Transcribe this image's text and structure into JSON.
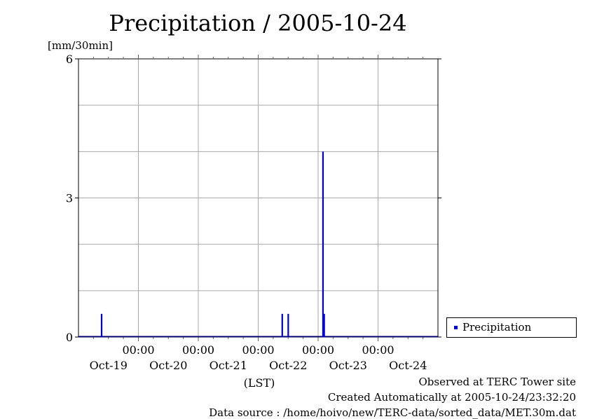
{
  "chart_data": {
    "type": "bar",
    "title": "Precipitation / 2005-10-24",
    "ylabel": "[mm/30min]",
    "xlabel": "(LST)",
    "ylim": [
      0,
      6
    ],
    "yticks": [
      0,
      3,
      6
    ],
    "ygrid_step": 1,
    "xlim_days": [
      "2005-10-19 00:00",
      "2005-10-25 00:00"
    ],
    "xtick_time_labels": [
      "00:00",
      "00:00",
      "00:00",
      "00:00",
      "00:00"
    ],
    "xtick_date_labels": [
      "Oct-19",
      "Oct-20",
      "Oct-21",
      "Oct-22",
      "Oct-23",
      "Oct-24"
    ],
    "series": [
      {
        "name": "Precipitation",
        "color": "#0000cc",
        "points": [
          {
            "t": "2005-10-19 09:00",
            "day_offset": 0.385,
            "value": 0.5
          },
          {
            "t": "2005-10-22 09:30",
            "day_offset": 3.4,
            "value": 0.5
          },
          {
            "t": "2005-10-22 12:00",
            "day_offset": 3.5,
            "value": 0.5
          },
          {
            "t": "2005-10-23 02:00",
            "day_offset": 4.08,
            "value": 4.0
          },
          {
            "t": "2005-10-23 02:30",
            "day_offset": 4.1,
            "value": 0.5
          }
        ]
      }
    ],
    "legend_position": "right-bottom"
  },
  "footer": {
    "observed": "Observed at TERC Tower site",
    "created": "Created Automatically at 2005-10-24/23:32:20",
    "source": "Data source : /home/hoivo/new/TERC-data/sorted_data/MET.30m.dat"
  }
}
